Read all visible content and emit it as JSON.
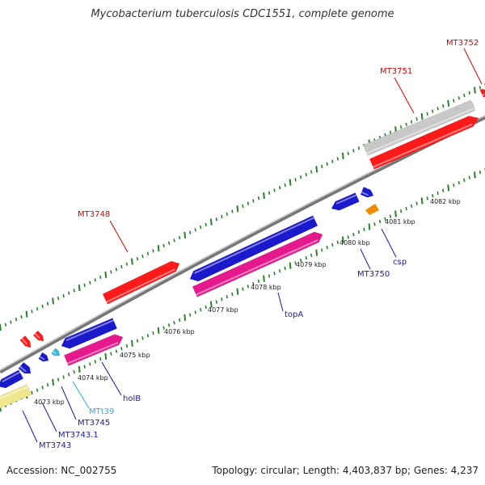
{
  "title": "Mycobacterium tuberculosis CDC1551, complete genome",
  "footer": {
    "accession": "Accession: NC_002755",
    "topology": "Topology: circular; Length: 4,403,837 bp; Genes: 4,237"
  },
  "colors": {
    "backbone": "#8c8c8c",
    "tick": "#2e7d32",
    "red_gene": "#ff1a1a",
    "blue_gene": "#1a1acc",
    "pink_gene": "#e6198c",
    "gray_gene": "#c8c8c8",
    "yellow_gene": "#f0e68c",
    "orange_gene": "#f08c00",
    "cyan_trna": "#33bbdd",
    "label_red": "#dd0000",
    "label_blue": "#1a1aaa",
    "label_cyan": "#33aadd"
  },
  "scale_labels": [
    "4073 kbp",
    "4074 kbp",
    "4075 kbp",
    "4076 kbp",
    "4077 kbp",
    "4078 kbp",
    "4079 kbp",
    "4080 kbp",
    "4081 kbp",
    "4082 kbp"
  ],
  "gene_labels": [
    {
      "id": "mt3752",
      "text": "MT3752",
      "color": "label_red"
    },
    {
      "id": "mt3751",
      "text": "MT3751",
      "color": "label_red"
    },
    {
      "id": "mt3748",
      "text": "MT3748",
      "color": "label_red"
    },
    {
      "id": "csp",
      "text": "csp",
      "color": "label_blue"
    },
    {
      "id": "mt3750",
      "text": "MT3750",
      "color": "label_blue"
    },
    {
      "id": "topa",
      "text": "topA",
      "color": "label_blue"
    },
    {
      "id": "holb",
      "text": "holB",
      "color": "label_blue"
    },
    {
      "id": "mtt39",
      "text": "MTt39",
      "color": "label_cyan"
    },
    {
      "id": "mt3745",
      "text": "MT3745",
      "color": "label_blue"
    },
    {
      "id": "mt3743_1",
      "text": "MT3743.1",
      "color": "label_blue"
    },
    {
      "id": "mt3743",
      "text": "MT3743",
      "color": "label_blue"
    }
  ]
}
